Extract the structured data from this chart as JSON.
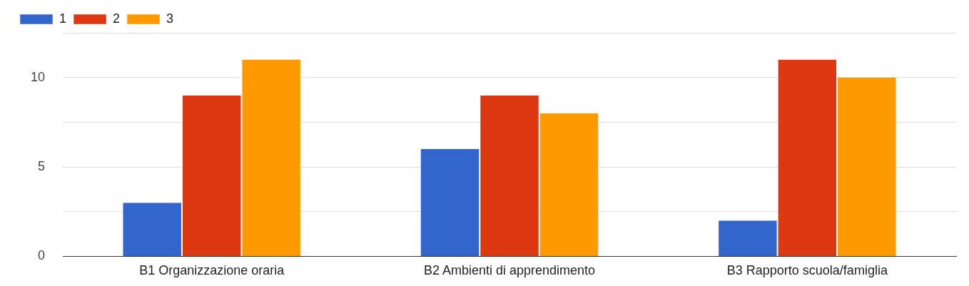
{
  "chart_data": {
    "type": "bar",
    "categories": [
      "B1 Organizzazione oraria",
      "B2 Ambienti di apprendimento",
      "B3 Rapporto scuola/famiglia"
    ],
    "series": [
      {
        "name": "1",
        "color": "#3366cc",
        "values": [
          3,
          6,
          2
        ]
      },
      {
        "name": "2",
        "color": "#dc3912",
        "values": [
          9,
          9,
          11
        ]
      },
      {
        "name": "3",
        "color": "#ff9900",
        "values": [
          11,
          8,
          10
        ]
      }
    ],
    "ylim": [
      0,
      12.5
    ],
    "yticks": [
      0,
      {
        "value": 2.5,
        "label": null
      },
      5,
      {
        "value": 7.5,
        "label": null
      },
      10,
      {
        "value": 12.5,
        "label": null
      }
    ],
    "grid": "y",
    "legend": "top left"
  }
}
